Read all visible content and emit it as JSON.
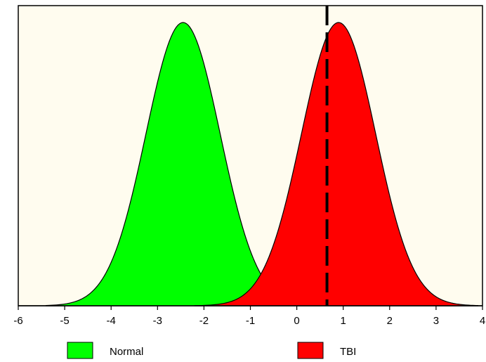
{
  "chart_data": {
    "type": "area",
    "title": "",
    "xlabel": "",
    "ylabel": "",
    "xlim": [
      -6,
      4
    ],
    "ylim": [
      0,
      1.0
    ],
    "grid": false,
    "xticks": [
      "-6",
      "-5",
      "-4",
      "-3",
      "-2",
      "-1",
      "0",
      "1",
      "2",
      "3",
      "4"
    ],
    "series": [
      {
        "name": "Normal",
        "color": "#00ff00",
        "mean": -2.45,
        "sd": 0.8,
        "peak": 1.0,
        "x_start": -5.4,
        "x_end": 0.5
      },
      {
        "name": "TBI",
        "color": "#ff0000",
        "mean": 0.9,
        "sd": 0.8,
        "peak": 1.0,
        "x_start": -2.2,
        "x_end": 3.9
      }
    ],
    "threshold": {
      "x": 0.65,
      "style": "dashed",
      "color": "#000000"
    },
    "plot_background": "#fffcef",
    "legend": {
      "position": "bottom",
      "entries": [
        {
          "label": "Normal",
          "color": "#00ff00"
        },
        {
          "label": "TBI",
          "color": "#ff0000"
        }
      ]
    }
  }
}
